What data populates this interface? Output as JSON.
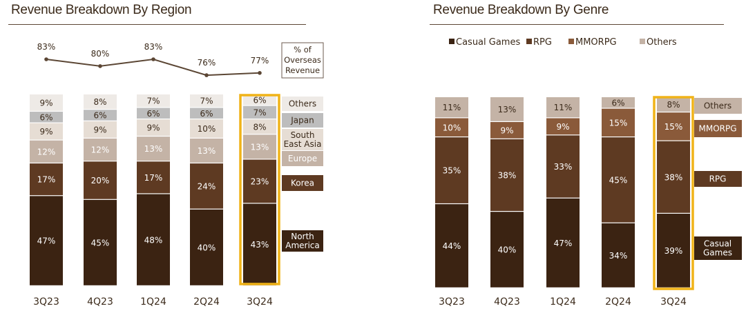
{
  "charts_meta": {
    "left_title": "Revenue Breakdown By Region",
    "right_title": "Revenue Breakdown By Genre"
  },
  "colors": {
    "dark": "#3b2312",
    "brown": "#5e3a22",
    "mid": "#a88c79",
    "light": "#c4b3a6",
    "pale": "#e6ddd4",
    "paler": "#eeeae6",
    "grey": "#bdbdbd",
    "highlight": "#f0b318",
    "line": "#5b4634"
  },
  "chart_data": [
    {
      "type": "bar",
      "stacked": true,
      "title": "Revenue Breakdown By Region",
      "categories": [
        "3Q23",
        "4Q23",
        "1Q24",
        "2Q24",
        "3Q24"
      ],
      "series": [
        {
          "name": "North America",
          "label": "North\nAmerica",
          "values": [
            47,
            45,
            48,
            40,
            43
          ],
          "color": "#3b2312",
          "text_color": "#ffffff"
        },
        {
          "name": "Korea",
          "label": "Korea",
          "values": [
            17,
            20,
            17,
            24,
            23
          ],
          "color": "#5e3a22",
          "text_color": "#ffffff"
        },
        {
          "name": "Europe",
          "label": "Europe",
          "values": [
            12,
            12,
            13,
            13,
            13
          ],
          "color": "#c4b3a6",
          "text_color": "#ffffff"
        },
        {
          "name": "South East Asia",
          "label": "South\nEast Asia",
          "values": [
            9,
            9,
            9,
            10,
            8
          ],
          "color": "#e6ddd4",
          "text_color": "#3b2a1a"
        },
        {
          "name": "Japan",
          "label": "Japan",
          "values": [
            6,
            6,
            6,
            6,
            7
          ],
          "color": "#bdbdbd",
          "text_color": "#3b2a1a"
        },
        {
          "name": "Others",
          "label": "Others",
          "values": [
            9,
            8,
            7,
            7,
            6
          ],
          "color": "#eeeae6",
          "text_color": "#3b2a1a"
        }
      ],
      "line_series": {
        "name": "% of Overseas Revenue",
        "label": "% of\nOverseas\nRevenue",
        "values": [
          83,
          80,
          83,
          76,
          77
        ],
        "labels": [
          "83%",
          "80%",
          "83%",
          "76%",
          "77%"
        ]
      },
      "highlight_category": "3Q24"
    },
    {
      "type": "bar",
      "stacked": true,
      "title": "Revenue Breakdown By Genre",
      "categories": [
        "3Q23",
        "4Q23",
        "1Q24",
        "2Q24",
        "3Q24"
      ],
      "legend": [
        "Casual Games",
        "RPG",
        "MMORPG",
        "Others"
      ],
      "series": [
        {
          "name": "Casual Games",
          "label": "Casual\nGames",
          "values": [
            44,
            40,
            47,
            34,
            39
          ],
          "color": "#3b2312",
          "text_color": "#ffffff"
        },
        {
          "name": "RPG",
          "label": "RPG",
          "values": [
            35,
            38,
            33,
            45,
            38
          ],
          "color": "#5e3a22",
          "text_color": "#ffffff"
        },
        {
          "name": "MMORPG",
          "label": "MMORPG",
          "values": [
            10,
            9,
            9,
            15,
            15
          ],
          "color": "#8a5a3a",
          "text_color": "#ffffff"
        },
        {
          "name": "Others",
          "label": "Others",
          "values": [
            11,
            13,
            11,
            6,
            8
          ],
          "color": "#c4b3a6",
          "text_color": "#3b2a1a"
        }
      ],
      "highlight_category": "3Q24"
    }
  ]
}
